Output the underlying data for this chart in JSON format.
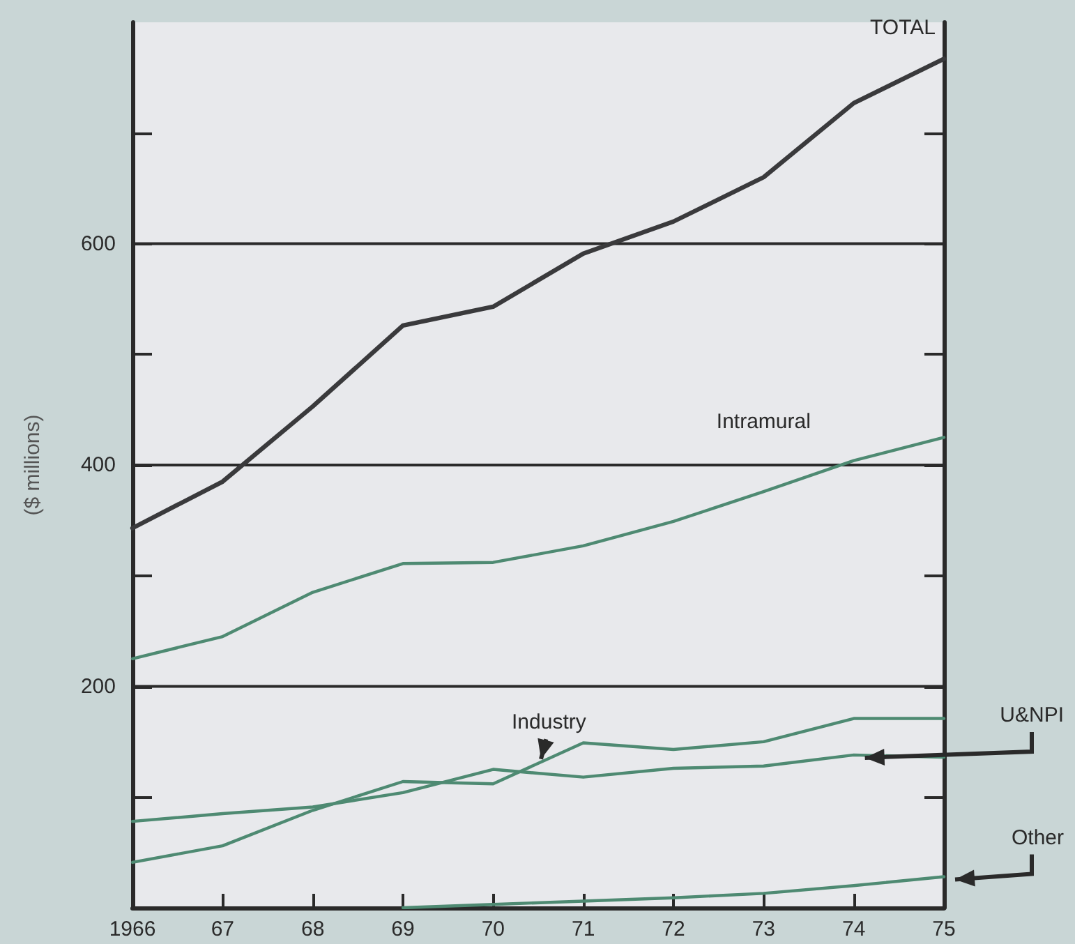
{
  "chart_data": {
    "type": "line",
    "ylabel": "($ millions)",
    "x": [
      1966,
      1967,
      1968,
      1969,
      1970,
      1971,
      1972,
      1973,
      1974,
      1975
    ],
    "series": [
      {
        "name": "TOTAL",
        "color": "#3a3a3c",
        "values": [
          343,
          385,
          453,
          526,
          543,
          591,
          620,
          660,
          727,
          767
        ]
      },
      {
        "name": "Intramural",
        "color": "#4e8a72",
        "values": [
          225,
          245,
          285,
          311,
          312,
          327,
          349,
          376,
          404,
          425
        ]
      },
      {
        "name": "Industry",
        "color": "#4e8a72",
        "values": [
          41,
          56,
          88,
          114,
          112,
          149,
          143,
          150,
          171,
          171
        ]
      },
      {
        "name": "U&NPI",
        "color": "#4e8a72",
        "values": [
          78,
          85,
          91,
          104,
          125,
          118,
          126,
          128,
          138,
          136
        ]
      },
      {
        "name": "Other",
        "color": "#4e8a72",
        "values": [
          null,
          null,
          null,
          0,
          3,
          6,
          9,
          13,
          20,
          28
        ]
      }
    ],
    "xlim": [
      1966,
      1975
    ],
    "xticks": [
      1966,
      {
        "value": 1967,
        "label": "67"
      },
      {
        "value": 1968,
        "label": "68"
      },
      {
        "value": 1969,
        "label": "69"
      },
      {
        "value": 1970,
        "label": "70"
      },
      {
        "value": 1971,
        "label": "71"
      },
      {
        "value": 1972,
        "label": "72"
      },
      {
        "value": 1973,
        "label": "73"
      },
      {
        "value": 1974,
        "label": "74"
      },
      {
        "value": 1975,
        "label": "75"
      }
    ],
    "ylim": [
      0,
      800
    ],
    "yticks": [
      {
        "value": 100,
        "label": null
      },
      200,
      {
        "value": 300,
        "label": null
      },
      400,
      {
        "value": 500,
        "label": null
      },
      600,
      {
        "value": 700,
        "label": null
      }
    ],
    "grid": "y",
    "legend": false,
    "marker": "none",
    "line_style": "solid"
  }
}
